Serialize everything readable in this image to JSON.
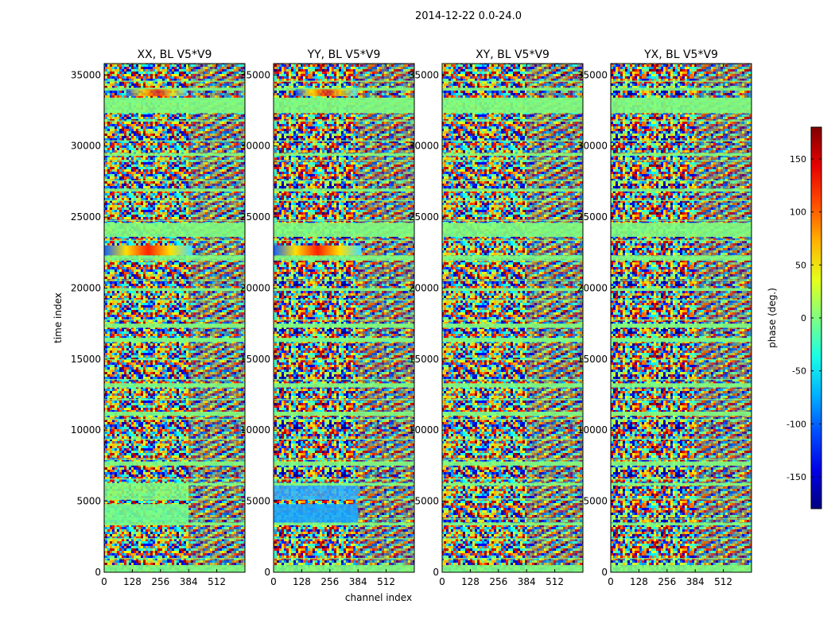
{
  "figure": {
    "suptitle": "2014-12-22 0.0-24.0"
  },
  "chart_data": {
    "type": "heatmap",
    "ylabel": "time index",
    "xlabel": "channel index",
    "xlim": [
      0,
      640
    ],
    "ylim": [
      0,
      35800
    ],
    "x_ticks": [
      0,
      128,
      256,
      384,
      512
    ],
    "y_ticks": [
      0,
      5000,
      10000,
      15000,
      20000,
      25000,
      30000,
      35000
    ],
    "colormap": "jet",
    "colorbar": {
      "label": "phase (deg.)",
      "range": [
        -180,
        180
      ],
      "ticks": [
        -150,
        -100,
        -50,
        0,
        50,
        100,
        150
      ]
    },
    "panels": [
      {
        "title": "XX, BL V5*V9"
      },
      {
        "title": "YY, BL V5*V9"
      },
      {
        "title": "XY, BL V5*V9"
      },
      {
        "title": "YX, BL V5*V9"
      }
    ]
  }
}
